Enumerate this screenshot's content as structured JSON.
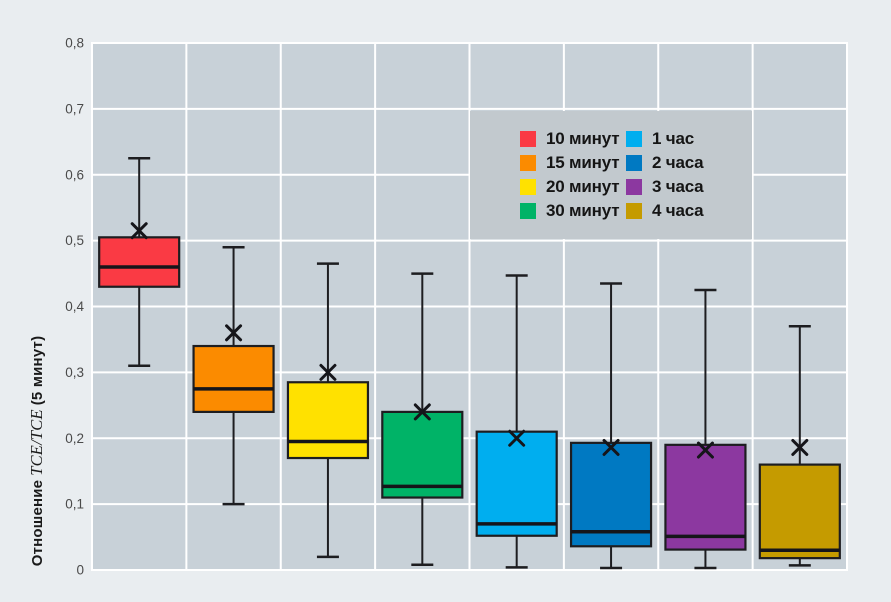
{
  "colors": {
    "page_bg": "#e9edf0",
    "plot_bg": "#c8d1d8",
    "legend_bg": "#c2c9ce",
    "grid": "#ffffff",
    "box_stroke": "#1d1d20",
    "tick_text": "#4a4a4a"
  },
  "ylabel_parts": {
    "prefix": "Отношение",
    "math": "TCE/TCE",
    "suffix": "(5 минут)"
  },
  "chart_data": {
    "type": "boxplot",
    "title": "",
    "xlabel": "",
    "ylabel": "Отношение TCE/TCE (5 минут)",
    "ylim": [
      0,
      0.8
    ],
    "ytick_step": 0.1,
    "ytick_labels": [
      "0",
      "0,1",
      "0,2",
      "0,3",
      "0,4",
      "0,5",
      "0,6",
      "0,7",
      "0,8"
    ],
    "grid": true,
    "legend_position": "inside-upper-right, 2 columns",
    "categories": [
      "10 минут",
      "15 минут",
      "20 минут",
      "30 минут",
      "1 час",
      "2 часа",
      "3 часа",
      "4 часа"
    ],
    "series": [
      {
        "name": "10 минут",
        "color": "#fa3a44",
        "whisker_low": 0.31,
        "q1": 0.43,
        "median": 0.46,
        "q3": 0.505,
        "whisker_high": 0.625,
        "mean": 0.515
      },
      {
        "name": "15 минут",
        "color": "#fb8b00",
        "whisker_low": 0.1,
        "q1": 0.24,
        "median": 0.275,
        "q3": 0.34,
        "whisker_high": 0.49,
        "mean": 0.36
      },
      {
        "name": "20 минут",
        "color": "#ffe100",
        "whisker_low": 0.02,
        "q1": 0.17,
        "median": 0.195,
        "q3": 0.285,
        "whisker_high": 0.465,
        "mean": 0.3
      },
      {
        "name": "30 минут",
        "color": "#00b367",
        "whisker_low": 0.008,
        "q1": 0.11,
        "median": 0.127,
        "q3": 0.24,
        "whisker_high": 0.45,
        "mean": 0.24
      },
      {
        "name": "1 час",
        "color": "#00aeef",
        "whisker_low": 0.004,
        "q1": 0.052,
        "median": 0.07,
        "q3": 0.21,
        "whisker_high": 0.447,
        "mean": 0.2
      },
      {
        "name": "2 часа",
        "color": "#0079c2",
        "whisker_low": 0.003,
        "q1": 0.036,
        "median": 0.058,
        "q3": 0.193,
        "whisker_high": 0.435,
        "mean": 0.186
      },
      {
        "name": "3 часа",
        "color": "#8c38a0",
        "whisker_low": 0.003,
        "q1": 0.031,
        "median": 0.051,
        "q3": 0.19,
        "whisker_high": 0.425,
        "mean": 0.182
      },
      {
        "name": "4 часа",
        "color": "#c59b00",
        "whisker_low": 0.007,
        "q1": 0.018,
        "median": 0.03,
        "q3": 0.16,
        "whisker_high": 0.37,
        "mean": 0.186
      }
    ]
  }
}
